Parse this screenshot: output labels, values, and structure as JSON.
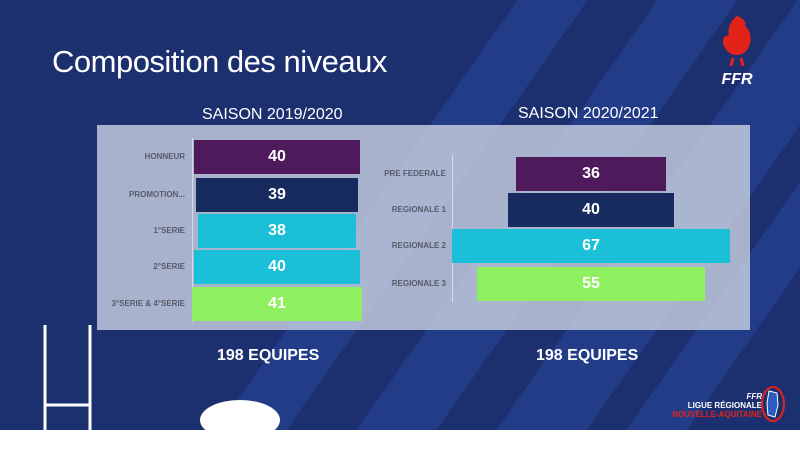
{
  "title": "Composition des niveaux",
  "logo": {
    "text": "FFR"
  },
  "footer_logo": {
    "line1": "FFR",
    "line2": "LIGUE RÉGIONALE",
    "line3": "NOUVELLE-AQUITAINE"
  },
  "chart_data": [
    {
      "type": "bar",
      "orientation": "funnel",
      "title": "SAISON 2019/2020",
      "categories": [
        "HONNEUR",
        "PROMOTION...",
        "1°SERIE",
        "2°SERIE",
        "3°SERIE & 4°SERIE"
      ],
      "values": [
        40,
        39,
        38,
        40,
        41
      ],
      "colors": [
        "#4e1a5b",
        "#172b5e",
        "#1cbfd8",
        "#1cbfd8",
        "#8ef05e"
      ],
      "total_label": "198 EQUIPES"
    },
    {
      "type": "bar",
      "orientation": "funnel",
      "title": "SAISON 2020/2021",
      "categories": [
        "PRE FEDERALE",
        "REGIONALE 1",
        "REGIONALE 2",
        "REGIONALE 3"
      ],
      "values": [
        36,
        40,
        67,
        55
      ],
      "colors": [
        "#4e1a5b",
        "#172b5e",
        "#1cbfd8",
        "#8ef05e"
      ],
      "total_label": "198 EQUIPES"
    }
  ]
}
